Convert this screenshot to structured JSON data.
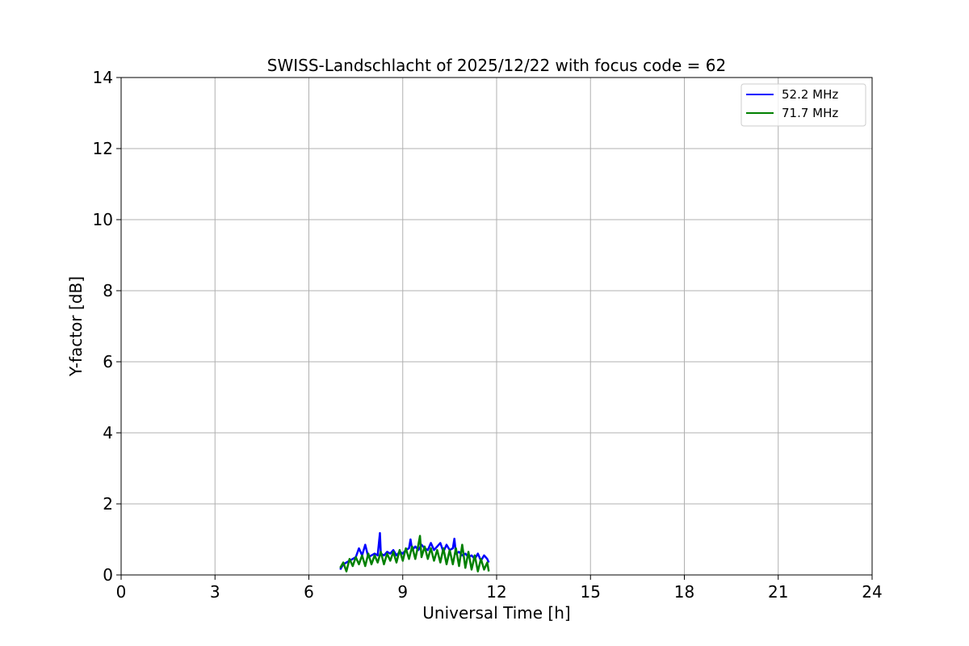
{
  "chart_data": {
    "type": "line",
    "title": "SWISS-Landschlacht of 2025/12/22 with focus code = 62",
    "xlabel": "Universal Time [h]",
    "ylabel": "Y-factor [dB]",
    "xlim": [
      0,
      24
    ],
    "ylim": [
      0,
      14
    ],
    "xticks": [
      "0",
      "3",
      "6",
      "9",
      "12",
      "15",
      "18",
      "21",
      "24"
    ],
    "yticks": [
      "0",
      "2",
      "4",
      "6",
      "8",
      "10",
      "12",
      "14"
    ],
    "grid": true,
    "legend_position": "top-right",
    "series": [
      {
        "name": "  52.2 MHz",
        "color": "#0000ff",
        "x": [
          7.0,
          7.1,
          7.2,
          7.3,
          7.4,
          7.5,
          7.6,
          7.7,
          7.8,
          7.9,
          8.0,
          8.1,
          8.2,
          8.27,
          8.3,
          8.4,
          8.5,
          8.6,
          8.7,
          8.8,
          8.9,
          9.0,
          9.1,
          9.2,
          9.25,
          9.3,
          9.4,
          9.5,
          9.6,
          9.7,
          9.8,
          9.9,
          10.0,
          10.1,
          10.2,
          10.3,
          10.4,
          10.5,
          10.6,
          10.65,
          10.7,
          10.8,
          10.9,
          11.0,
          11.1,
          11.2,
          11.3,
          11.4,
          11.5,
          11.6,
          11.7,
          11.75
        ],
        "y": [
          0.15,
          0.3,
          0.35,
          0.4,
          0.45,
          0.5,
          0.75,
          0.55,
          0.85,
          0.5,
          0.55,
          0.6,
          0.55,
          1.18,
          0.6,
          0.55,
          0.65,
          0.6,
          0.7,
          0.55,
          0.65,
          0.6,
          0.7,
          0.75,
          1.0,
          0.7,
          0.8,
          0.7,
          0.85,
          0.75,
          0.7,
          0.9,
          0.7,
          0.8,
          0.9,
          0.65,
          0.85,
          0.7,
          0.75,
          1.02,
          0.6,
          0.65,
          0.55,
          0.6,
          0.5,
          0.55,
          0.45,
          0.6,
          0.4,
          0.55,
          0.45,
          0.35
        ]
      },
      {
        "name": "  71.7 MHz",
        "color": "#008000",
        "x": [
          7.0,
          7.1,
          7.2,
          7.3,
          7.4,
          7.5,
          7.6,
          7.7,
          7.8,
          7.9,
          8.0,
          8.1,
          8.2,
          8.3,
          8.4,
          8.5,
          8.6,
          8.7,
          8.8,
          8.9,
          9.0,
          9.1,
          9.2,
          9.3,
          9.4,
          9.5,
          9.55,
          9.6,
          9.7,
          9.8,
          9.9,
          10.0,
          10.1,
          10.2,
          10.3,
          10.4,
          10.5,
          10.6,
          10.7,
          10.8,
          10.9,
          11.0,
          11.1,
          11.2,
          11.3,
          11.4,
          11.5,
          11.6,
          11.7,
          11.75
        ],
        "y": [
          0.2,
          0.35,
          0.1,
          0.45,
          0.25,
          0.5,
          0.3,
          0.55,
          0.25,
          0.6,
          0.3,
          0.55,
          0.35,
          0.65,
          0.3,
          0.6,
          0.4,
          0.65,
          0.35,
          0.7,
          0.4,
          0.75,
          0.45,
          0.8,
          0.45,
          0.85,
          1.1,
          0.5,
          0.8,
          0.45,
          0.75,
          0.4,
          0.7,
          0.35,
          0.75,
          0.3,
          0.7,
          0.3,
          0.75,
          0.25,
          0.85,
          0.2,
          0.65,
          0.15,
          0.55,
          0.1,
          0.45,
          0.15,
          0.35,
          0.1
        ]
      }
    ]
  }
}
